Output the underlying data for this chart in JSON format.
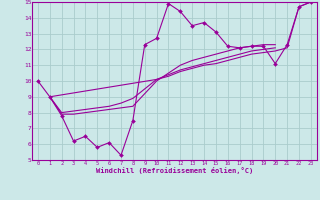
{
  "background_color": "#cce8e8",
  "grid_color": "#aacccc",
  "line_color": "#990099",
  "xlabel": "Windchill (Refroidissement éolien,°C)",
  "xlim": [
    -0.5,
    23.5
  ],
  "ylim": [
    5,
    15
  ],
  "xticks": [
    0,
    1,
    2,
    3,
    4,
    5,
    6,
    7,
    8,
    9,
    10,
    11,
    12,
    13,
    14,
    15,
    16,
    17,
    18,
    19,
    20,
    21,
    22,
    23
  ],
  "yticks": [
    5,
    6,
    7,
    8,
    9,
    10,
    11,
    12,
    13,
    14,
    15
  ],
  "series": [
    {
      "x": [
        0,
        1,
        2,
        3,
        4,
        5,
        6,
        7,
        8,
        9,
        10,
        11,
        12,
        13,
        14,
        15,
        16,
        17,
        18,
        19,
        20,
        21,
        22,
        23
      ],
      "y": [
        10,
        9,
        7.8,
        6.2,
        6.5,
        5.8,
        6.1,
        5.3,
        7.5,
        12.3,
        12.7,
        14.9,
        14.4,
        13.5,
        13.7,
        13.1,
        12.2,
        12.1,
        12.2,
        12.2,
        11.1,
        12.3,
        14.7,
        15.0
      ],
      "has_markers": true
    },
    {
      "x": [
        1,
        2,
        3,
        4,
        5,
        6,
        7,
        8,
        9,
        10,
        11,
        12,
        13,
        14,
        15,
        16,
        17,
        18,
        19,
        20
      ],
      "y": [
        9.0,
        7.9,
        7.9,
        8.0,
        8.1,
        8.2,
        8.3,
        8.4,
        9.2,
        10.0,
        10.5,
        11.0,
        11.3,
        11.5,
        11.7,
        11.9,
        12.1,
        12.2,
        12.3,
        12.3
      ],
      "has_markers": false
    },
    {
      "x": [
        1,
        2,
        3,
        4,
        5,
        6,
        7,
        8,
        9,
        10,
        11,
        12,
        13,
        14,
        15,
        16,
        17,
        18,
        19,
        20
      ],
      "y": [
        9.0,
        8.0,
        8.1,
        8.2,
        8.3,
        8.4,
        8.6,
        8.9,
        9.5,
        10.1,
        10.4,
        10.7,
        10.9,
        11.1,
        11.3,
        11.5,
        11.7,
        11.9,
        12.0,
        12.1
      ],
      "has_markers": false
    },
    {
      "x": [
        1,
        10,
        11,
        12,
        13,
        14,
        15,
        16,
        17,
        18,
        19,
        20,
        21,
        22,
        23
      ],
      "y": [
        9.0,
        10.1,
        10.3,
        10.6,
        10.8,
        11.0,
        11.1,
        11.3,
        11.5,
        11.7,
        11.8,
        11.9,
        12.1,
        14.7,
        15.0
      ],
      "has_markers": false
    }
  ]
}
